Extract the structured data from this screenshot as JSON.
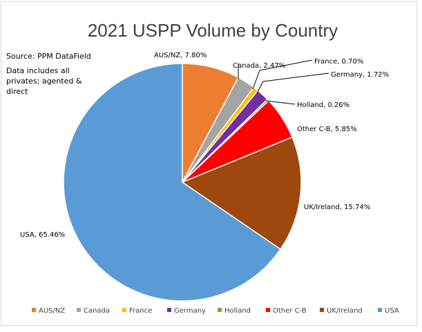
{
  "chart_data": {
    "type": "pie",
    "title": "2021 USPP Volume by Country",
    "notes": [
      "Source: PPM DataField",
      "Data includes all",
      "privates; agented &",
      "direct"
    ],
    "start_angle_deg": 0,
    "direction": "clockwise",
    "legend_position": "bottom",
    "slices": [
      {
        "name": "AUS/NZ",
        "value": 7.8,
        "label": "AUS/NZ, 7.80%",
        "color": "#ED7D31"
      },
      {
        "name": "Canada",
        "value": 2.47,
        "label": "Canada, 2.47%",
        "color": "#A5A5A5"
      },
      {
        "name": "France",
        "value": 0.7,
        "label": "France, 0.70%",
        "color": "#FFC000"
      },
      {
        "name": "Germany",
        "value": 1.72,
        "label": "Germany, 1.72%",
        "color": "#7030A0"
      },
      {
        "name": "Holland",
        "value": 0.26,
        "label": "Holland, 0.26%",
        "color": "#70AD47"
      },
      {
        "name": "Other C-B",
        "value": 5.85,
        "label": "Other C-B, 5.85%",
        "color": "#FF0000"
      },
      {
        "name": "UK/Ireland",
        "value": 15.74,
        "label": "UK/Ireland, 15.74%",
        "color": "#9E480E"
      },
      {
        "name": "USA",
        "value": 65.46,
        "label": "USA, 65.46%",
        "color": "#5B9BD5"
      }
    ]
  }
}
